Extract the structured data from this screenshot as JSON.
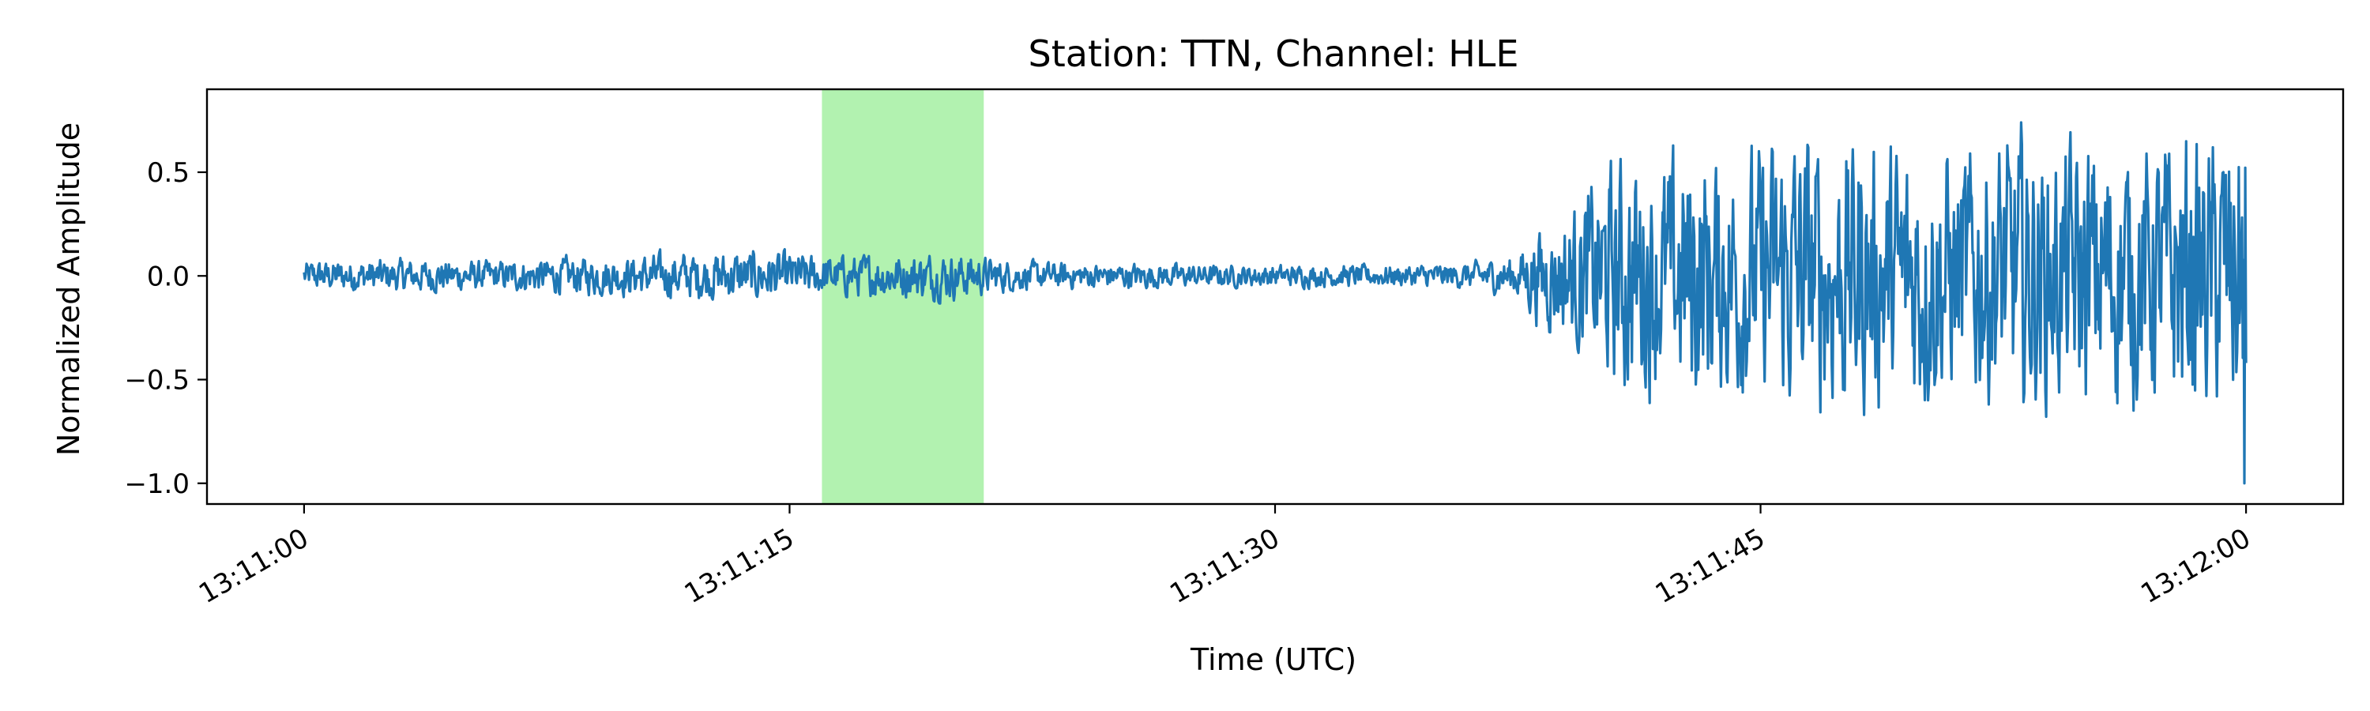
{
  "chart_data": {
    "type": "line",
    "title": "Station: TTN, Channel: HLE",
    "xlabel": "Time (UTC)",
    "ylabel": "Normalized Amplitude",
    "x_ticks": [
      "13:11:00",
      "13:11:15",
      "13:11:30",
      "13:11:45",
      "13:12:00"
    ],
    "x_tick_seconds": [
      0,
      15,
      30,
      45,
      60
    ],
    "xlim": [
      -3,
      63
    ],
    "y_ticks": [
      0.5,
      0.0,
      -0.5,
      -1.0
    ],
    "y_tick_labels": [
      "0.5",
      "0.0",
      "−0.5",
      "−1.0"
    ],
    "ylim": [
      -1.1,
      0.9
    ],
    "highlight_span": {
      "start": 16.0,
      "end": 21.0,
      "color": "#b2f2b0"
    },
    "line_color": "#1f77b4",
    "grid": false,
    "series": [
      {
        "x": [
          0,
          2,
          4,
          6,
          8,
          10,
          12,
          14,
          16,
          18,
          20,
          22,
          24,
          26,
          28,
          30,
          32,
          34,
          36,
          37.5,
          38,
          39,
          40,
          41,
          42,
          43,
          44,
          45,
          46,
          47,
          48,
          49,
          50,
          51,
          52,
          53,
          54,
          55,
          56,
          57,
          58,
          59,
          60
        ],
        "envelope": [
          0.08,
          0.09,
          0.09,
          0.08,
          0.1,
          0.11,
          0.13,
          0.14,
          0.11,
          0.12,
          0.13,
          0.08,
          0.07,
          0.07,
          0.06,
          0.06,
          0.06,
          0.06,
          0.07,
          0.12,
          0.25,
          0.35,
          0.55,
          0.7,
          0.6,
          0.75,
          0.65,
          0.7,
          0.8,
          0.75,
          0.78,
          0.7,
          0.75,
          0.68,
          0.72,
          0.78,
          0.7,
          0.75,
          0.72,
          0.7,
          0.8,
          0.75,
          0.9
        ]
      }
    ]
  }
}
